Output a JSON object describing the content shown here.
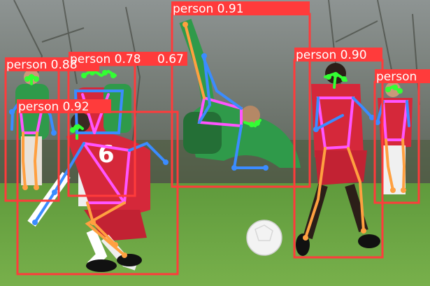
{
  "image": {
    "colors": {
      "box": "#ff3b3b",
      "label_bg": "#ff3b3b",
      "label_text": "#ffffff",
      "face_keypoints": "#33ff33",
      "left_limbs": "#3b8cff",
      "right_limbs": "#ffa040",
      "torso": "#ff55ff",
      "grass": "#6aa342",
      "trees": "#5b5f57",
      "red_kit": "#d5283a",
      "green_kit": "#2f9a4a"
    },
    "detections": [
      {
        "label": "person 0.88"
      },
      {
        "label": "person 0.92"
      },
      {
        "label": "person 0.78"
      },
      {
        "label": "0.67"
      },
      {
        "label": "person 0.91"
      },
      {
        "label": "person 0.90"
      },
      {
        "label": "person"
      }
    ]
  }
}
